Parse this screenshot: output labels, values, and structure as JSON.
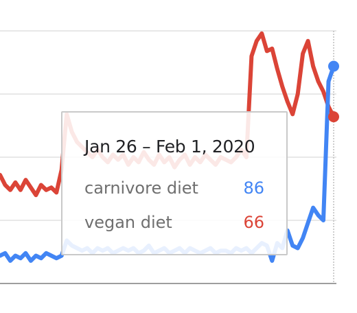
{
  "tooltip": {
    "title": "Jan 26 – Feb 1, 2020",
    "rows": [
      {
        "label": "carnivore diet",
        "value": "86"
      },
      {
        "label": "vegan diet",
        "value": "66"
      }
    ]
  },
  "chart_data": {
    "type": "line",
    "ylim": [
      0,
      100
    ],
    "grid": true,
    "series": [
      {
        "name": "carnivore diet",
        "color": "#4285f4",
        "values": [
          11,
          12,
          9,
          11,
          10,
          12,
          9,
          11,
          10,
          12,
          11,
          10,
          11,
          17,
          15,
          14,
          13,
          14,
          12,
          14,
          13,
          14,
          12,
          13,
          14,
          13,
          14,
          12,
          13,
          15,
          12,
          13,
          14,
          12,
          13,
          14,
          12,
          14,
          13,
          12,
          13,
          14,
          12,
          13,
          13,
          12,
          14,
          13,
          14,
          12,
          14,
          16,
          15,
          9,
          16,
          14,
          21,
          15,
          14,
          18,
          24,
          30,
          27,
          25,
          80,
          86
        ]
      },
      {
        "name": "vegan diet",
        "color": "#db4437",
        "values": [
          43,
          39,
          37,
          40,
          37,
          41,
          38,
          35,
          39,
          37,
          38,
          36,
          45,
          67,
          60,
          56,
          54,
          52,
          50,
          53,
          50,
          48,
          51,
          49,
          51,
          47,
          50,
          48,
          52,
          49,
          47,
          51,
          48,
          50,
          46,
          49,
          51,
          47,
          50,
          48,
          51,
          49,
          47,
          50,
          49,
          48,
          50,
          53,
          50,
          90,
          96,
          99,
          92,
          93,
          85,
          78,
          72,
          67,
          75,
          91,
          96,
          86,
          80,
          76,
          70,
          66
        ]
      }
    ]
  }
}
